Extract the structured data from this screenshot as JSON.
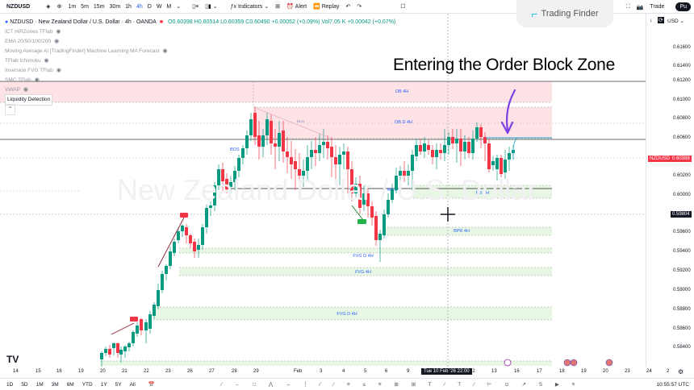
{
  "toolbar": {
    "symbol": "NZDUSD",
    "timeframes": [
      "1m",
      "5m",
      "15m",
      "30m",
      "1h",
      "4h",
      "D",
      "W",
      "M"
    ],
    "active_timeframe": "4h",
    "indicators_label": "Indicators",
    "alert_label": "Alert",
    "replay_label": "Replay",
    "trade_label": "Trade",
    "publish_label": "Pu"
  },
  "logo": {
    "text": "Trading Finder"
  },
  "legend": {
    "title": "NZDUSD · New Zealand Dollar / U.S. Dollar · 4h · OANDA",
    "ohlc": "O0.60398 H0.60514 L0.60359 C0.60490 +0.00052 (+0.09%) Vol7.05 K +0.00042 (+0.07%)",
    "indicators": [
      "ICT HiRZones TFlab",
      "EMA 20/50/100/200",
      "Moving Average AI [TradingFinder] Machine Learning MA Forecast",
      "TFlab Ichimoku",
      "Inversion FVG TFlab",
      "SMC TFlab",
      "VWAP",
      "Liquidity Detection"
    ]
  },
  "headline": "Entering the Order Block Zone",
  "watermark": "New Zealand Dollar / U.S. Dollar",
  "price_axis": {
    "currency": "USD",
    "ticks": [
      "0.61600",
      "0.61400",
      "0.61200",
      "0.61000",
      "0.60800",
      "0.60600",
      "0.60200",
      "0.60000",
      "0.59600",
      "0.59400",
      "0.59200",
      "0.59000",
      "0.58800",
      "0.58600",
      "0.58400"
    ],
    "symbol_tag": "NZDUSD",
    "last_price": "0.60398",
    "crosshair_price": "0.59804"
  },
  "time_axis": {
    "labels": [
      "14",
      "15",
      "16",
      "19",
      "20",
      "21",
      "22",
      "23",
      "26",
      "27",
      "28",
      "29",
      "Feb",
      "3",
      "4",
      "5",
      "6",
      "9",
      "12",
      "13",
      "16",
      "17",
      "18",
      "19",
      "20",
      "23",
      "24",
      "2"
    ],
    "crosshair_time": "Tue 10 Feb '26  22:00"
  },
  "bottombar": {
    "ranges": [
      "1D",
      "5D",
      "1M",
      "3M",
      "6M",
      "YTD",
      "1Y",
      "5Y",
      "All"
    ],
    "clock": "10:55:57 UTC"
  },
  "zones": [
    {
      "label": "OB 4H",
      "kind": "bearish"
    },
    {
      "label": "OB D 4H",
      "kind": "bearish"
    },
    {
      "label": "RB 4H",
      "kind": "bullish"
    },
    {
      "label": "BPR 4H",
      "kind": "bullish"
    },
    {
      "label": "FVG D 4H",
      "kind": "bullish"
    },
    {
      "label": "FVG 4H",
      "kind": "bullish"
    },
    {
      "label": "FVG D 4H",
      "kind": "bullish"
    }
  ],
  "annotations": {
    "bos": "BOS",
    "mss": "MSS",
    "dlh": "DLH"
  },
  "colors": {
    "up": "#089981",
    "down": "#f23645",
    "ob_zone": "#fde2e6",
    "fvg_zone": "#e8f7e4",
    "arrow": "#7b3fe4",
    "label_blue": "#2962ff"
  }
}
